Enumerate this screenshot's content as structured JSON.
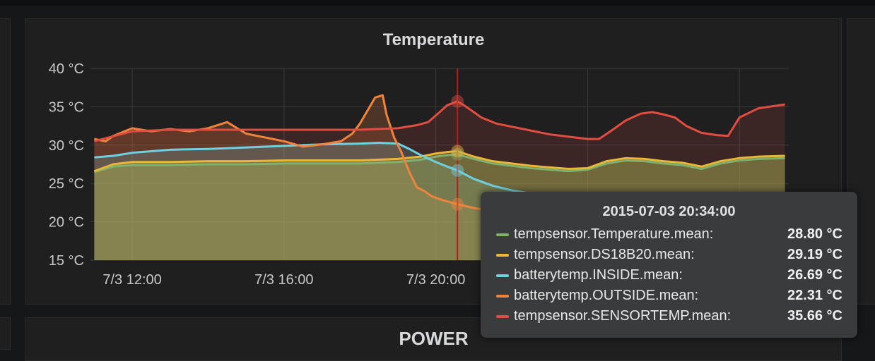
{
  "panel": {
    "title": "Temperature"
  },
  "power_panel": {
    "title": "POWER"
  },
  "tooltip": {
    "time": "2015-07-03 20:34:00",
    "rows": [
      {
        "name": "tempsensor.Temperature.mean:",
        "value": "28.80 °C",
        "color": "#7eb26d"
      },
      {
        "name": "tempsensor.DS18B20.mean:",
        "value": "29.19 °C",
        "color": "#eab839"
      },
      {
        "name": "batterytemp.INSIDE.mean:",
        "value": "26.69 °C",
        "color": "#6ed0e0"
      },
      {
        "name": "batterytemp.OUTSIDE.mean:",
        "value": "22.31 °C",
        "color": "#ef843c"
      },
      {
        "name": "tempsensor.SENSORTEMP.mean:",
        "value": "35.66 °C",
        "color": "#e24d42"
      }
    ]
  },
  "chart_data": {
    "type": "line",
    "title": "Temperature",
    "xlabel": "",
    "ylabel": "",
    "x_unit": "hour of 2015-07-03",
    "xlim": [
      10.9,
      29.3
    ],
    "ylim": [
      15,
      40
    ],
    "y_ticks": [
      {
        "value": 15,
        "label": "15 °C"
      },
      {
        "value": 20,
        "label": "20 °C"
      },
      {
        "value": 25,
        "label": "25 °C"
      },
      {
        "value": 30,
        "label": "30 °C"
      },
      {
        "value": 35,
        "label": "35 °C"
      },
      {
        "value": 40,
        "label": "40 °C"
      }
    ],
    "x_ticks": [
      {
        "value": 12,
        "label": "7/3 12:00"
      },
      {
        "value": 16,
        "label": "7/3 16:00"
      },
      {
        "value": 20,
        "label": "7/3 20:00"
      },
      {
        "value": 24,
        "label": ""
      },
      {
        "value": 28,
        "label": ""
      }
    ],
    "grid": true,
    "fill_area": true,
    "hover_x": 20.57,
    "series": [
      {
        "name": "tempsensor.Temperature.mean",
        "color": "#7eb26d",
        "x": [
          11,
          11.5,
          12,
          13,
          14,
          15,
          16,
          17,
          18,
          19,
          19.6,
          20.0,
          20.3,
          20.57,
          21,
          21.5,
          22,
          22.5,
          23,
          23.5,
          24,
          24.5,
          25,
          25.5,
          26,
          26.5,
          27,
          27.5,
          28,
          28.5,
          29.2
        ],
        "values": [
          26.5,
          27.2,
          27.4,
          27.4,
          27.5,
          27.5,
          27.6,
          27.6,
          27.6,
          27.8,
          28.1,
          28.5,
          28.7,
          28.8,
          28.2,
          27.6,
          27.3,
          27.0,
          26.8,
          26.6,
          26.8,
          27.6,
          28.0,
          27.9,
          27.6,
          27.4,
          26.9,
          27.6,
          28.0,
          28.2,
          28.3
        ]
      },
      {
        "name": "tempsensor.DS18B20.mean",
        "color": "#eab839",
        "x": [
          11,
          11.5,
          12,
          13,
          14,
          15,
          16,
          17,
          18,
          19,
          19.6,
          20.0,
          20.3,
          20.57,
          21,
          21.5,
          22,
          22.5,
          23,
          23.5,
          24,
          24.5,
          25,
          25.5,
          26,
          26.5,
          27,
          27.5,
          28,
          28.5,
          29.2
        ],
        "values": [
          26.6,
          27.5,
          27.8,
          27.8,
          27.9,
          27.9,
          28.0,
          28.0,
          28.0,
          28.2,
          28.5,
          28.9,
          29.1,
          29.2,
          28.5,
          27.9,
          27.6,
          27.3,
          27.1,
          26.9,
          27.0,
          27.9,
          28.3,
          28.2,
          27.9,
          27.7,
          27.2,
          27.9,
          28.3,
          28.5,
          28.6
        ]
      },
      {
        "name": "batterytemp.INSIDE.mean",
        "color": "#6ed0e0",
        "x": [
          11,
          11.5,
          12,
          13,
          14,
          15,
          16,
          17,
          18,
          18.5,
          19,
          19.3,
          19.6,
          20.0,
          20.3,
          20.57,
          21,
          21.5,
          22,
          22.5,
          23,
          24
        ],
        "values": [
          28.4,
          28.6,
          29.0,
          29.4,
          29.5,
          29.7,
          29.9,
          30.1,
          30.2,
          30.3,
          30.2,
          29.5,
          28.7,
          27.8,
          27.2,
          26.7,
          25.6,
          24.7,
          24.1,
          23.7,
          23.4,
          23.0
        ]
      },
      {
        "name": "batterytemp.OUTSIDE.mean",
        "color": "#ef843c",
        "x": [
          11,
          11.3,
          11.5,
          12,
          12.5,
          13,
          13.5,
          14,
          14.5,
          15,
          15.5,
          16,
          16.5,
          17,
          17.5,
          17.8,
          18.0,
          18.2,
          18.4,
          18.6,
          18.7,
          18.9,
          19.1,
          19.3,
          19.5,
          19.7,
          19.9,
          20.2,
          20.57,
          21,
          21.5
        ],
        "values": [
          30.8,
          30.5,
          31.2,
          32.2,
          31.8,
          32.1,
          31.8,
          32.2,
          33.0,
          31.5,
          31.0,
          30.5,
          29.8,
          30.1,
          30.5,
          31.5,
          32.8,
          34.5,
          36.2,
          36.5,
          34.0,
          31.0,
          29.0,
          26.5,
          24.5,
          24.0,
          23.3,
          22.8,
          22.3,
          21.8,
          21.4
        ]
      },
      {
        "name": "tempsensor.SENSORTEMP.mean",
        "color": "#e24d42",
        "x": [
          11,
          12,
          13,
          14,
          15,
          16,
          17,
          18,
          19,
          19.5,
          19.8,
          20.1,
          20.3,
          20.57,
          20.8,
          21.2,
          21.6,
          22.0,
          22.5,
          23,
          23.5,
          24,
          24.3,
          24.6,
          25.0,
          25.4,
          25.7,
          26.0,
          26.3,
          26.6,
          27.0,
          27.4,
          27.7,
          28.0,
          28.5,
          29.2
        ],
        "values": [
          30.5,
          31.8,
          32.0,
          32.0,
          32.0,
          32.0,
          32.0,
          32.0,
          32.2,
          32.6,
          33.0,
          34.3,
          35.2,
          35.7,
          35.0,
          33.6,
          32.8,
          32.4,
          31.9,
          31.4,
          31.1,
          30.8,
          30.8,
          31.8,
          33.2,
          34.1,
          34.3,
          34.0,
          33.6,
          32.5,
          31.6,
          31.3,
          31.2,
          33.6,
          34.8,
          35.3
        ]
      }
    ]
  }
}
